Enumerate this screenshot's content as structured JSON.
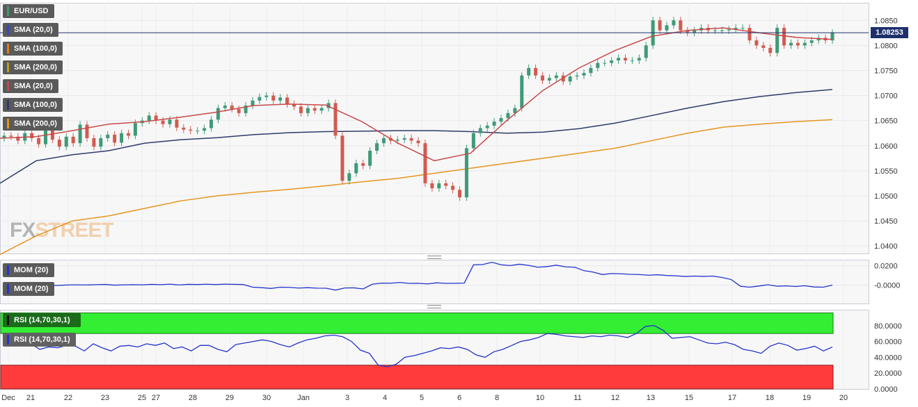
{
  "chart_data": [
    {
      "type": "candlestick",
      "symbol": "EUR/USD",
      "last_price": "1.08253",
      "y_ticks": [
        "1.0850",
        "1.0800",
        "1.0750",
        "1.0700",
        "1.0650",
        "1.0600",
        "1.0550",
        "1.0500",
        "1.0450",
        "1.0400"
      ],
      "ylim": [
        1.0385,
        1.0885
      ],
      "x_ticks": [
        "Dec",
        "21",
        "22",
        "23",
        "25",
        "27",
        "28",
        "29",
        "30",
        "Jan",
        "3",
        "4",
        "5",
        "6",
        "8",
        "10",
        "11",
        "12",
        "13",
        "15",
        "17",
        "18",
        "19",
        "20"
      ],
      "legend": [
        "SMA (20,0)",
        "SMA (100,0)",
        "SMA (200,0)",
        "SMA (20,0)",
        "SMA (100,0)",
        "SMA (200,0)"
      ],
      "legend_colors": [
        "#3344cc",
        "#e07d20",
        "#b8a020",
        "#c84848",
        "#2d3a6a",
        "#e5951f"
      ],
      "candle_colors": {
        "up": "#3f9a77",
        "down": "#d25b50"
      },
      "closes": [
        1.062,
        1.0618,
        1.061,
        1.0625,
        1.0615,
        1.0603,
        1.0632,
        1.0612,
        1.0598,
        1.0618,
        1.0605,
        1.0642,
        1.0615,
        1.0598,
        1.0615,
        1.0622,
        1.0606,
        1.0625,
        1.062,
        1.0645,
        1.065,
        1.066,
        1.065,
        1.0643,
        1.0652,
        1.0636,
        1.0632,
        1.063,
        1.063,
        1.0635,
        1.0652,
        1.0675,
        1.068,
        1.0673,
        1.0665,
        1.068,
        1.069,
        1.0697,
        1.07,
        1.069,
        1.0696,
        1.0683,
        1.0678,
        1.0665,
        1.0675,
        1.067,
        1.0675,
        1.0685,
        1.062,
        1.053,
        1.0545,
        1.0565,
        1.056,
        1.059,
        1.0605,
        1.0615,
        1.061,
        1.0612,
        1.0615,
        1.061,
        1.0605,
        1.0525,
        1.0515,
        1.0525,
        1.052,
        1.0512,
        1.0497,
        1.0595,
        1.0625,
        1.0635,
        1.064,
        1.0648,
        1.0655,
        1.0665,
        1.0675,
        1.074,
        1.0755,
        1.074,
        1.073,
        1.0735,
        1.074,
        1.0728,
        1.0738,
        1.074,
        1.0745,
        1.0755,
        1.0765,
        1.0765,
        1.077,
        1.0775,
        1.077,
        1.077,
        1.0775,
        1.08,
        1.085,
        1.083,
        1.084,
        1.085,
        1.083,
        1.0825,
        1.083,
        1.0835,
        1.083,
        1.083,
        1.083,
        1.0832,
        1.0835,
        1.0835,
        1.081,
        1.08,
        1.0795,
        1.0785,
        1.0835,
        1.08,
        1.0805,
        1.08,
        1.0805,
        1.081,
        1.0815,
        1.081,
        1.0825
      ],
      "sma_20": [
        1.0615,
        1.0618,
        1.063,
        1.0643,
        1.0648,
        1.0657,
        1.0667,
        1.068,
        1.0683,
        1.0681,
        1.0648,
        1.0605,
        1.057,
        1.0585,
        1.065,
        1.071,
        1.0755,
        1.079,
        1.0818,
        1.083,
        1.0835,
        1.0825,
        1.0816,
        1.0812
      ],
      "sma_100": [
        1.0525,
        1.057,
        1.0582,
        1.059,
        1.0605,
        1.0612,
        1.0616,
        1.0622,
        1.0626,
        1.0628,
        1.0629,
        1.063,
        1.063,
        1.0628,
        1.0625,
        1.0627,
        1.0634,
        1.0645,
        1.066,
        1.0675,
        1.0688,
        1.0698,
        1.0706,
        1.0712
      ],
      "sma_200": [
        1.0383,
        1.042,
        1.045,
        1.046,
        1.0475,
        1.049,
        1.05,
        1.0507,
        1.0513,
        1.052,
        1.0528,
        1.0535,
        1.0545,
        1.0555,
        1.0565,
        1.0575,
        1.0585,
        1.0595,
        1.061,
        1.0625,
        1.0637,
        1.0643,
        1.0648,
        1.0652
      ]
    },
    {
      "type": "line",
      "indicator": "MOM (20)",
      "legend": [
        "MOM (20)",
        "MOM (20)"
      ],
      "y_ticks": [
        "0.0200",
        "-0.0000"
      ],
      "ylim": [
        -0.0188,
        0.0262
      ],
      "values": [
        -0.0001,
        0.0002,
        0.0001,
        0.0002,
        0.001,
        -0.0002,
        -0.0001,
        0.0003,
        0.0004,
        0.0003,
        0.0006,
        0.0008,
        0.0001,
        0.0004,
        0.0006,
        0.0004,
        0.0009,
        0.0006,
        0.0011,
        0.0003,
        0.0009,
        0.0007,
        0.001,
        0.0007,
        0.0011,
        0.0009,
        0.0007,
        -0.002,
        -0.0025,
        -0.0033,
        -0.002,
        -0.0022,
        -0.0029,
        -0.0025,
        -0.003,
        -0.0031,
        -0.005,
        -0.0028,
        -0.0027,
        -0.0038,
        0.001,
        0.0022,
        0.0021,
        0.0028,
        0.0019,
        0.002,
        0.0014,
        0.0025,
        0.0019,
        0.002,
        0.0022,
        0.021,
        0.0213,
        0.0236,
        0.021,
        0.0202,
        0.0216,
        0.0204,
        0.0185,
        0.0192,
        0.0206,
        0.0189,
        0.0185,
        0.015,
        0.0135,
        0.011,
        0.012,
        0.0118,
        0.0112,
        0.011,
        0.0103,
        0.0108,
        0.01,
        0.0097,
        0.009,
        0.0094,
        0.0091,
        0.0094,
        0.008,
        0.0059,
        -0.001,
        -0.002,
        -0.0008,
        0.0005,
        -0.001,
        -0.0007,
        -0.0013,
        -0.0005,
        -0.0018,
        -0.002,
        0.0001
      ]
    },
    {
      "type": "line",
      "indicator": "RSI (14,70,30,1)",
      "legend": [
        "RSI (14,70,30,1)",
        "RSI (14,70,30,1)"
      ],
      "y_ticks": [
        "80.0000",
        "60.0000",
        "40.0000",
        "20.0000",
        "0.0000"
      ],
      "ylim": [
        0,
        100
      ],
      "bands": {
        "overbought": 70,
        "oversold": 30
      },
      "values": [
        55,
        56,
        54,
        57,
        50,
        53,
        52,
        55,
        54,
        48,
        57,
        52,
        48,
        54,
        55,
        53,
        57,
        55,
        58,
        51,
        53,
        48,
        55,
        55,
        50,
        47,
        56,
        58,
        60,
        62,
        60,
        56,
        53,
        58,
        62,
        64,
        67,
        68,
        66,
        60,
        49,
        45,
        30,
        28,
        31,
        40,
        42,
        45,
        48,
        52,
        51,
        53,
        50,
        43,
        40,
        47,
        50,
        55,
        60,
        62,
        65,
        70,
        69,
        67,
        66,
        65,
        67,
        66,
        68,
        67,
        65,
        70,
        79,
        80,
        74,
        64,
        65,
        66,
        62,
        58,
        57,
        59,
        56,
        50,
        48,
        45,
        54,
        58,
        55,
        49,
        51,
        54,
        48,
        53
      ]
    }
  ]
}
